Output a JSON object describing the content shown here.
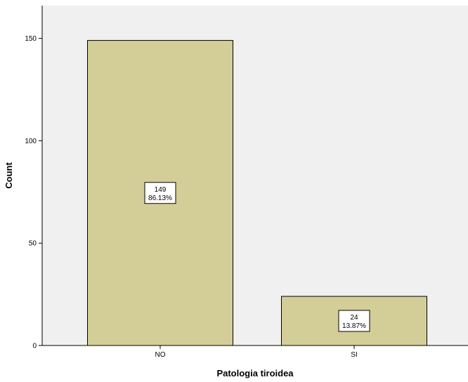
{
  "chart_data": {
    "type": "bar",
    "categories": [
      "NO",
      "SI"
    ],
    "values": [
      149,
      24
    ],
    "data_labels": [
      {
        "count": "149",
        "percent": "86.13%"
      },
      {
        "count": "24",
        "percent": "13.87%"
      }
    ],
    "xlabel": "Patologia tiroidea",
    "ylabel": "Count",
    "ylim": [
      0,
      166
    ],
    "yticks": [
      0,
      50,
      100,
      150
    ],
    "ytick_labels": [
      "0",
      "50",
      "100",
      "150"
    ],
    "grid": false,
    "colors": {
      "plot_background": "#f0f0f0",
      "bar_fill": "#d3ce97",
      "bar_stroke": "#000000"
    }
  }
}
